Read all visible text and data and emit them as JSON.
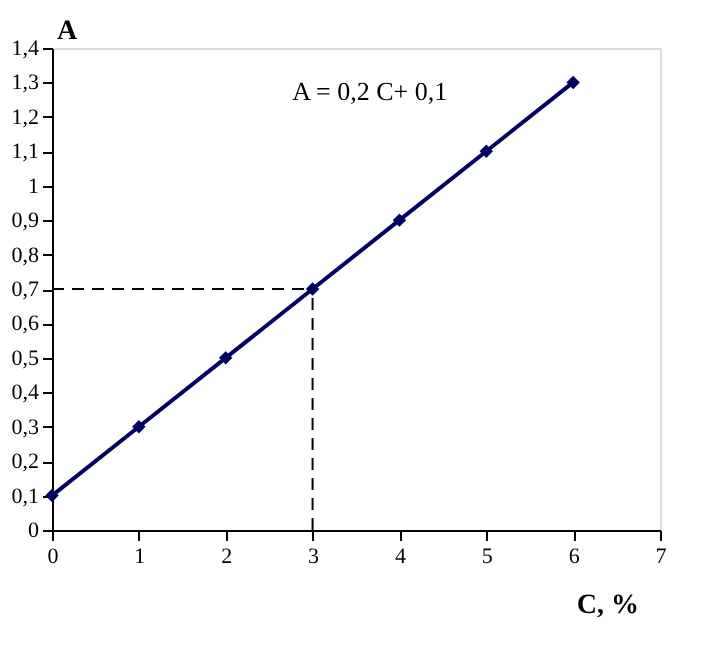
{
  "chart_data": {
    "type": "line",
    "xlabel": "C, %",
    "ylabel": "A",
    "x": [
      0,
      1,
      2,
      3,
      4,
      5,
      6
    ],
    "series": [
      {
        "color": "#000060",
        "values": [
          0.1,
          0.3,
          0.5,
          0.7,
          0.9,
          1.1,
          1.3
        ]
      }
    ],
    "marker": "diamond",
    "line_style": "solid",
    "grid": false,
    "xlim": [
      0,
      7
    ],
    "xticks": [
      0,
      1,
      2,
      3,
      4,
      5,
      6,
      7
    ],
    "ylim": [
      0,
      1.4
    ],
    "yticks": [
      0,
      {
        "value": 0.1,
        "label": "0,1"
      },
      {
        "value": 0.2,
        "label": "0,2"
      },
      {
        "value": 0.3,
        "label": "0,3"
      },
      {
        "value": 0.4,
        "label": "0,4"
      },
      {
        "value": 0.5,
        "label": "0,5"
      },
      {
        "value": 0.6,
        "label": "0,6"
      },
      {
        "value": 0.7,
        "label": "0,7"
      },
      {
        "value": 0.8,
        "label": "0,8"
      },
      {
        "value": 0.9,
        "label": "0,9"
      },
      1,
      {
        "value": 1.1,
        "label": "1,1"
      },
      {
        "value": 1.2,
        "label": "1,2"
      },
      {
        "value": 1.3,
        "label": "1,3"
      },
      {
        "value": 1.4,
        "label": "1,4"
      }
    ],
    "ref_lines": [
      {
        "axis": "y",
        "value": 0.7,
        "line_style": "dashed"
      },
      {
        "axis": "x",
        "value": 3,
        "line_style": "dashed"
      }
    ],
    "annotations": [
      "A = 0,2 C+ 0,1"
    ]
  }
}
